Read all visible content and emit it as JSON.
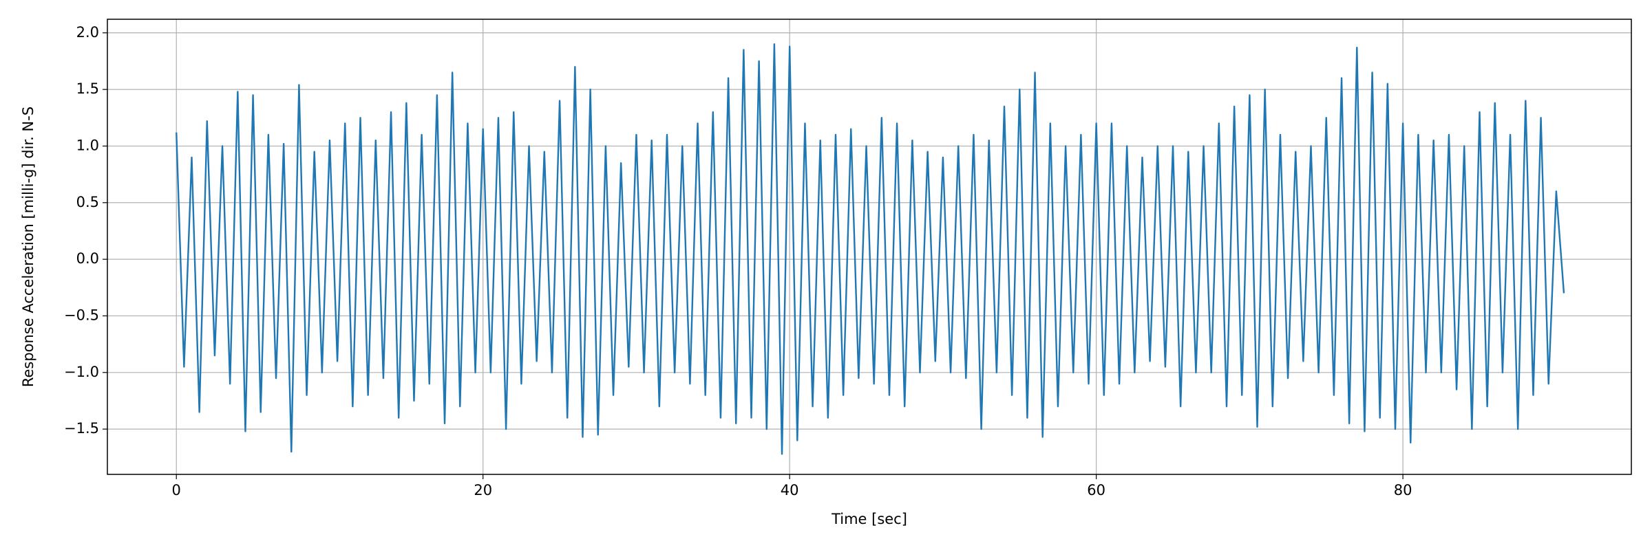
{
  "chart_data": {
    "type": "line",
    "xlabel": "Time [sec]",
    "ylabel": "Response Acceleration [milli-g] dir. N-S",
    "x": [
      0,
      0.5,
      1,
      1.5,
      2,
      2.5,
      3,
      3.5,
      4,
      4.5,
      5,
      5.5,
      6,
      6.5,
      7,
      7.5,
      8,
      8.5,
      9,
      9.5,
      10,
      10.5,
      11,
      11.5,
      12,
      12.5,
      13,
      13.5,
      14,
      14.5,
      15,
      15.5,
      16,
      16.5,
      17,
      17.5,
      18,
      18.5,
      19,
      19.5,
      20,
      20.5,
      21,
      21.5,
      22,
      22.5,
      23,
      23.5,
      24,
      24.5,
      25,
      25.5,
      26,
      26.5,
      27,
      27.5,
      28,
      28.5,
      29,
      29.5,
      30,
      30.5,
      31,
      31.5,
      32,
      32.5,
      33,
      33.5,
      34,
      34.5,
      35,
      35.5,
      36,
      36.5,
      37,
      37.5,
      38,
      38.5,
      39,
      39.5,
      40,
      40.5,
      41,
      41.5,
      42,
      42.5,
      43,
      43.5,
      44,
      44.5,
      45,
      45.5,
      46,
      46.5,
      47,
      47.5,
      48,
      48.5,
      49,
      49.5,
      50,
      50.5,
      51,
      51.5,
      52,
      52.5,
      53,
      53.5,
      54,
      54.5,
      55,
      55.5,
      56,
      56.5,
      57,
      57.5,
      58,
      58.5,
      59,
      59.5,
      60,
      60.5,
      61,
      61.5,
      62,
      62.5,
      63,
      63.5,
      64,
      64.5,
      65,
      65.5,
      66,
      66.5,
      67,
      67.5,
      68,
      68.5,
      69,
      69.5,
      70,
      70.5,
      71,
      71.5,
      72,
      72.5,
      73,
      73.5,
      74,
      74.5,
      75,
      75.5,
      76,
      76.5,
      77,
      77.5,
      78,
      78.5,
      79,
      79.5,
      80,
      80.5,
      81,
      81.5,
      82,
      82.5,
      83,
      83.5,
      84,
      84.5,
      85,
      85.5,
      86,
      86.5,
      87,
      87.5,
      88,
      88.5,
      89,
      89.5,
      90,
      90.5
    ],
    "series": [
      {
        "color": "#1f77b4",
        "values": [
          1.12,
          -0.95,
          0.9,
          -1.35,
          1.22,
          -0.85,
          1.0,
          -1.1,
          1.48,
          -1.52,
          1.45,
          -1.35,
          1.1,
          -1.05,
          1.02,
          -1.7,
          1.54,
          -1.2,
          0.95,
          -1.0,
          1.05,
          -0.9,
          1.2,
          -1.3,
          1.25,
          -1.2,
          1.05,
          -1.05,
          1.3,
          -1.4,
          1.38,
          -1.25,
          1.1,
          -1.1,
          1.45,
          -1.45,
          1.65,
          -1.3,
          1.2,
          -1.0,
          1.15,
          -1.0,
          1.25,
          -1.5,
          1.3,
          -1.1,
          1.0,
          -0.9,
          0.95,
          -1.0,
          1.4,
          -1.4,
          1.7,
          -1.57,
          1.5,
          -1.55,
          1.0,
          -1.2,
          0.85,
          -0.95,
          1.1,
          -1.0,
          1.05,
          -1.3,
          1.1,
          -1.0,
          1.0,
          -1.1,
          1.2,
          -1.2,
          1.3,
          -1.4,
          1.6,
          -1.45,
          1.85,
          -1.4,
          1.75,
          -1.5,
          1.9,
          -1.72,
          1.88,
          -1.6,
          1.2,
          -1.3,
          1.05,
          -1.4,
          1.1,
          -1.2,
          1.15,
          -1.05,
          1.0,
          -1.1,
          1.25,
          -1.2,
          1.2,
          -1.3,
          1.05,
          -1.0,
          0.95,
          -0.9,
          0.9,
          -1.0,
          1.0,
          -1.05,
          1.1,
          -1.5,
          1.05,
          -1.0,
          1.35,
          -1.2,
          1.5,
          -1.4,
          1.65,
          -1.57,
          1.2,
          -1.3,
          1.0,
          -1.0,
          1.1,
          -1.1,
          1.2,
          -1.2,
          1.2,
          -1.1,
          1.0,
          -1.0,
          0.9,
          -0.9,
          1.0,
          -0.95,
          1.0,
          -1.3,
          0.95,
          -1.0,
          1.0,
          -1.0,
          1.2,
          -1.3,
          1.35,
          -1.2,
          1.45,
          -1.48,
          1.5,
          -1.3,
          1.1,
          -1.05,
          0.95,
          -0.9,
          1.0,
          -1.0,
          1.25,
          -1.2,
          1.6,
          -1.45,
          1.87,
          -1.52,
          1.65,
          -1.4,
          1.55,
          -1.5,
          1.2,
          -1.62,
          1.1,
          -1.0,
          1.05,
          -1.0,
          1.1,
          -1.15,
          1.0,
          -1.5,
          1.3,
          -1.3,
          1.38,
          -1.0,
          1.1,
          -1.5,
          1.4,
          -1.2,
          1.25,
          -1.1,
          0.6,
          -0.3
        ]
      }
    ],
    "xlim": [
      -4.5,
      94.9
    ],
    "ylim": [
      -1.9,
      2.12
    ],
    "xticks": [
      0,
      20,
      40,
      60,
      80
    ],
    "yticks": [
      {
        "value": -1.5,
        "label": "−1.5"
      },
      {
        "value": -1.0,
        "label": "−1.0"
      },
      {
        "value": -0.5,
        "label": "−0.5"
      },
      {
        "value": 0,
        "label": "0.0"
      },
      {
        "value": 0.5,
        "label": "0.5"
      },
      {
        "value": 1.0,
        "label": "1.0"
      },
      {
        "value": 1.5,
        "label": "1.5"
      },
      {
        "value": 2.0,
        "label": "2.0"
      }
    ],
    "grid": true
  }
}
